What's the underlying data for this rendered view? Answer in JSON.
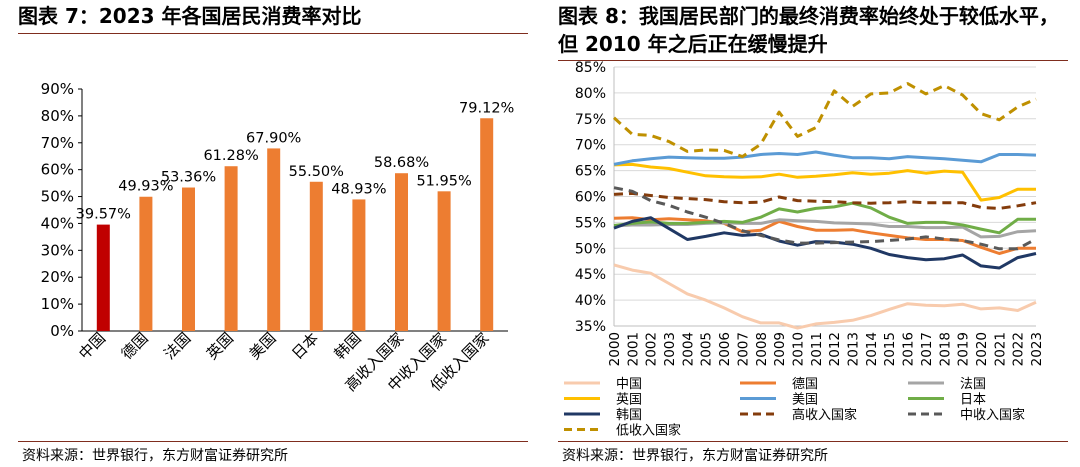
{
  "left_panel": {
    "title": "图表 7：2023 年各国居民消费率对比",
    "source": "资料来源：世界银行，东方财富证券研究所"
  },
  "right_panel": {
    "title": "图表 8：我国居民部门的最终消费率始终处于较低水平，但 2010 年之后正在缓慢提升",
    "source": "资料来源：世界银行，东方财富证券研究所"
  },
  "colors": {
    "accent_bar": "#ED7D31",
    "highlight_bar": "#C00000",
    "title_rule": "#7F2D1E"
  },
  "chart_data": [
    {
      "type": "bar",
      "title": "",
      "categories": [
        "中国",
        "德国",
        "法国",
        "英国",
        "美国",
        "日本",
        "韩国",
        "高收入国家",
        "中收入国家",
        "低收入国家"
      ],
      "values": [
        39.57,
        49.93,
        53.36,
        61.28,
        67.9,
        55.5,
        48.93,
        58.68,
        51.95,
        79.12
      ],
      "data_labels": [
        "39.57%",
        "49.93%",
        "53.36%",
        "61.28%",
        "67.90%",
        "55.50%",
        "48.93%",
        "58.68%",
        "51.95%",
        "79.12%"
      ],
      "highlight_index": 0,
      "ylim": [
        0,
        90
      ],
      "yticks": [
        "0%",
        "10%",
        "20%",
        "30%",
        "40%",
        "50%",
        "60%",
        "70%",
        "80%",
        "90%"
      ],
      "xlabel": "",
      "ylabel": "",
      "grid": false
    },
    {
      "type": "line",
      "title": "",
      "x": [
        "2000",
        "2001",
        "2002",
        "2003",
        "2004",
        "2005",
        "2006",
        "2007",
        "2008",
        "2009",
        "2010",
        "2011",
        "2012",
        "2013",
        "2014",
        "2015",
        "2016",
        "2017",
        "2018",
        "2019",
        "2020",
        "2021",
        "2022",
        "2023"
      ],
      "ylim": [
        35,
        85
      ],
      "yticks": [
        "35%",
        "40%",
        "45%",
        "50%",
        "55%",
        "60%",
        "65%",
        "70%",
        "75%",
        "80%",
        "85%"
      ],
      "legend_position": "bottom",
      "series": [
        {
          "name": "中国",
          "color": "#F8CBAD",
          "dash": "solid",
          "values": [
            46.8,
            45.8,
            45.2,
            43.2,
            41.2,
            40.0,
            38.5,
            36.8,
            35.6,
            35.6,
            34.6,
            35.4,
            35.7,
            36.1,
            37.0,
            38.2,
            39.3,
            39.0,
            38.9,
            39.2,
            38.3,
            38.5,
            38.0,
            39.6
          ]
        },
        {
          "name": "德国",
          "color": "#ED7D31",
          "dash": "solid",
          "values": [
            55.8,
            55.9,
            55.5,
            55.7,
            55.5,
            55.3,
            54.8,
            53.2,
            53.5,
            55.2,
            54.2,
            53.5,
            53.5,
            53.6,
            53.0,
            52.5,
            52.0,
            51.7,
            51.7,
            51.5,
            50.2,
            49.0,
            50.0,
            50.0
          ]
        },
        {
          "name": "法国",
          "color": "#A5A5A5",
          "dash": "solid",
          "values": [
            54.3,
            54.5,
            54.5,
            54.6,
            54.6,
            54.8,
            54.9,
            54.8,
            54.8,
            55.5,
            55.3,
            55.2,
            54.9,
            54.8,
            54.7,
            54.2,
            54.2,
            54.0,
            54.0,
            54.1,
            52.2,
            52.3,
            53.2,
            53.4
          ]
        },
        {
          "name": "英国",
          "color": "#FFC000",
          "dash": "solid",
          "values": [
            66.1,
            66.2,
            65.7,
            65.4,
            64.7,
            64.0,
            63.8,
            63.7,
            63.8,
            64.3,
            63.7,
            63.9,
            64.2,
            64.6,
            64.3,
            64.5,
            65.0,
            64.5,
            64.9,
            64.7,
            59.3,
            59.8,
            61.4,
            61.4
          ]
        },
        {
          "name": "美国",
          "color": "#5B9BD5",
          "dash": "solid",
          "values": [
            66.2,
            66.9,
            67.3,
            67.6,
            67.5,
            67.4,
            67.4,
            67.6,
            68.1,
            68.3,
            68.1,
            68.6,
            68.0,
            67.5,
            67.5,
            67.3,
            67.7,
            67.5,
            67.3,
            67.0,
            66.7,
            68.1,
            68.1,
            68.0
          ]
        },
        {
          "name": "日本",
          "color": "#70AD47",
          "dash": "solid",
          "values": [
            54.4,
            54.8,
            55.1,
            54.8,
            54.8,
            55.0,
            55.2,
            55.0,
            56.0,
            57.6,
            57.0,
            57.7,
            58.0,
            58.7,
            57.8,
            56.0,
            54.8,
            55.0,
            55.0,
            54.5,
            53.7,
            53.0,
            55.6,
            55.6
          ]
        },
        {
          "name": "韩国",
          "color": "#203864",
          "dash": "solid",
          "values": [
            53.9,
            55.2,
            55.9,
            53.8,
            51.7,
            52.3,
            53.0,
            52.5,
            52.7,
            51.4,
            50.6,
            51.3,
            51.2,
            50.8,
            50.0,
            48.8,
            48.2,
            47.8,
            48.0,
            48.7,
            46.6,
            46.2,
            48.2,
            49.0
          ]
        },
        {
          "name": "高收入国家",
          "color": "#843C0C",
          "dash": "dash",
          "values": [
            60.4,
            60.6,
            60.2,
            59.8,
            59.6,
            59.4,
            59.0,
            58.8,
            58.9,
            59.9,
            59.2,
            59.1,
            59.0,
            58.8,
            58.7,
            58.8,
            59.0,
            58.8,
            58.8,
            58.8,
            57.9,
            57.7,
            58.2,
            58.8
          ]
        },
        {
          "name": "中收入国家",
          "color": "#595959",
          "dash": "dash",
          "values": [
            61.7,
            61.0,
            59.2,
            58.3,
            57.0,
            56.0,
            54.8,
            53.4,
            52.5,
            51.6,
            51.0,
            51.0,
            51.1,
            51.2,
            51.3,
            51.5,
            51.8,
            52.2,
            51.8,
            51.5,
            50.8,
            49.9,
            49.9,
            51.8
          ]
        },
        {
          "name": "低收入国家",
          "color": "#BF9000",
          "dash": "dash",
          "values": [
            75.2,
            72.0,
            71.8,
            70.6,
            68.7,
            69.0,
            68.9,
            67.7,
            70.1,
            76.3,
            71.6,
            73.3,
            80.4,
            77.4,
            79.8,
            80.0,
            81.8,
            79.8,
            81.4,
            79.6,
            76.0,
            74.8,
            77.3,
            78.8
          ]
        }
      ]
    }
  ]
}
